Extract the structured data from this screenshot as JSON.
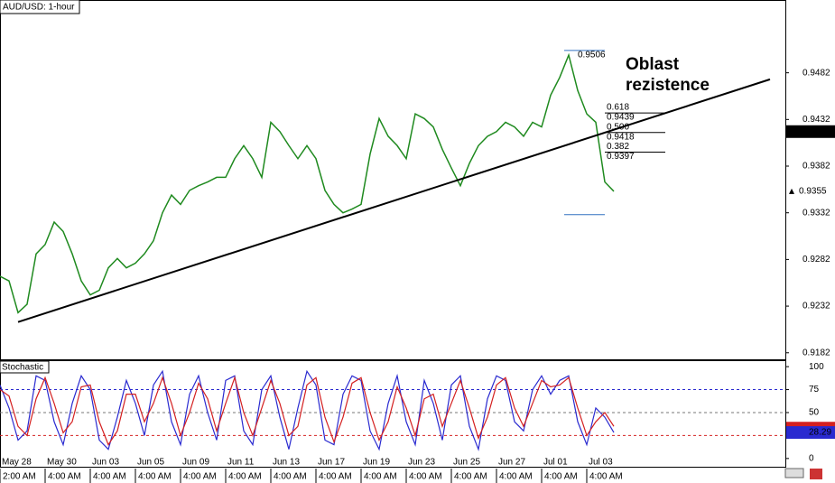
{
  "chart_data": [
    {
      "type": "line",
      "title": "AUD/USD: 1-hour",
      "color": "#1f8a1f",
      "x": [
        0,
        2,
        4,
        6,
        8,
        10,
        12,
        14,
        16,
        18,
        20,
        22,
        24,
        26,
        28,
        30,
        32,
        34,
        36,
        38,
        40,
        42,
        44,
        46,
        48,
        50,
        52,
        54,
        56,
        58,
        60,
        62,
        64,
        66,
        68,
        70,
        72,
        74,
        76,
        78,
        80,
        82,
        84,
        86,
        88,
        90,
        92,
        94,
        96,
        98,
        100,
        102,
        104,
        106,
        108,
        110,
        112,
        114,
        116,
        118,
        120,
        122,
        124,
        126,
        128,
        130,
        132,
        134,
        136
      ],
      "values": [
        0.9264,
        0.9259,
        0.9225,
        0.9234,
        0.9288,
        0.9298,
        0.9322,
        0.9312,
        0.9288,
        0.9259,
        0.9244,
        0.9249,
        0.9273,
        0.9283,
        0.9273,
        0.9278,
        0.9288,
        0.9302,
        0.9332,
        0.9351,
        0.9341,
        0.9356,
        0.9361,
        0.9365,
        0.937,
        0.937,
        0.939,
        0.9404,
        0.939,
        0.937,
        0.9429,
        0.9419,
        0.9404,
        0.939,
        0.9404,
        0.939,
        0.9356,
        0.9341,
        0.9332,
        0.9336,
        0.9341,
        0.9395,
        0.9433,
        0.9414,
        0.9404,
        0.939,
        0.9438,
        0.9433,
        0.9424,
        0.94,
        0.938,
        0.9361,
        0.9385,
        0.9404,
        0.9414,
        0.9419,
        0.9429,
        0.9424,
        0.9414,
        0.9429,
        0.9424,
        0.9458,
        0.9477,
        0.9501,
        0.9463,
        0.9438,
        0.9429,
        0.9365,
        0.9355
      ],
      "xlim": [
        0,
        174
      ],
      "ylim": [
        0.9175,
        0.956
      ],
      "yticks": [
        0.9182,
        0.9232,
        0.9282,
        0.9332,
        0.9382,
        0.9432,
        0.9482
      ],
      "xticks": [
        {
          "value": 0,
          "label": "May 28"
        },
        {
          "value": 10,
          "label": "May 30"
        },
        {
          "value": 20,
          "label": "Jun 03"
        },
        {
          "value": 30,
          "label": "Jun 05"
        },
        {
          "value": 40,
          "label": "Jun 09"
        },
        {
          "value": 50,
          "label": "Jun 11"
        },
        {
          "value": 60,
          "label": "Jun 13"
        },
        {
          "value": 70,
          "label": "Jun 17"
        },
        {
          "value": 80,
          "label": "Jun 19"
        },
        {
          "value": 90,
          "label": "Jun 23"
        },
        {
          "value": 100,
          "label": "Jun 25"
        },
        {
          "value": 110,
          "label": "Jun 27"
        },
        {
          "value": 120,
          "label": "Jul 01"
        },
        {
          "value": 130,
          "label": "Jul 03"
        }
      ],
      "time_labels": [
        "2:00 AM",
        "4:00 AM",
        "4:00 AM",
        "4:00 AM",
        "4:00 AM",
        "4:00 AM",
        "4:00 AM",
        "4:00 AM",
        "4:00 AM",
        "4:00 AM",
        "4:00 AM",
        "4:00 AM",
        "4:00 AM",
        "4:00 AM"
      ],
      "annotation": [
        "Oblast",
        "rezistence"
      ],
      "trendline": {
        "x": [
          4,
          170.6
        ],
        "values": [
          0.9215,
          0.9475
        ]
      },
      "fibonacci": {
        "x": [
          125,
          134
        ],
        "high": 0.9506,
        "low": 0.933,
        "levels": [
          {
            "ratio": "0.618",
            "value": 0.9439
          },
          {
            "ratio": "0.500",
            "value": 0.9418
          },
          {
            "ratio": "0.382",
            "value": 0.9397
          }
        ]
      },
      "crosshair_price": 0.9419,
      "last_price": 0.9355
    },
    {
      "type": "line",
      "title": "Stochastic",
      "series": [
        {
          "color": "#2a2ad0",
          "values": [
            80,
            55,
            20,
            30,
            90,
            85,
            40,
            15,
            60,
            90,
            75,
            20,
            10,
            45,
            85,
            60,
            25,
            80,
            95,
            40,
            15,
            70,
            90,
            50,
            20,
            85,
            90,
            30,
            15,
            75,
            90,
            45,
            10,
            55,
            95,
            80,
            20,
            15,
            70,
            90,
            85,
            30,
            10,
            60,
            90,
            40,
            15,
            85,
            60,
            20,
            80,
            90,
            35,
            10,
            65,
            90,
            85,
            40,
            30,
            75,
            90,
            70,
            85,
            90,
            40,
            15,
            55,
            45,
            28.29
          ]
        },
        {
          "color": "#d42020",
          "values": [
            75,
            68,
            35,
            25,
            65,
            88,
            60,
            28,
            40,
            78,
            80,
            40,
            15,
            30,
            70,
            70,
            40,
            60,
            88,
            60,
            25,
            50,
            82,
            65,
            30,
            60,
            88,
            50,
            25,
            55,
            85,
            60,
            25,
            35,
            80,
            88,
            45,
            18,
            45,
            82,
            88,
            50,
            20,
            40,
            78,
            55,
            25,
            65,
            70,
            35,
            60,
            85,
            55,
            22,
            45,
            80,
            88,
            55,
            35,
            60,
            85,
            78,
            80,
            88,
            55,
            25,
            40,
            50,
            35
          ]
        }
      ],
      "ylim": [
        -9,
        107
      ],
      "yticks": [
        0,
        50,
        75,
        100
      ],
      "levels": [
        {
          "value": 75,
          "color": "#2a2ad0"
        },
        {
          "value": 50,
          "color": "#777777"
        },
        {
          "value": 25,
          "color": "#d42020"
        }
      ]
    }
  ]
}
